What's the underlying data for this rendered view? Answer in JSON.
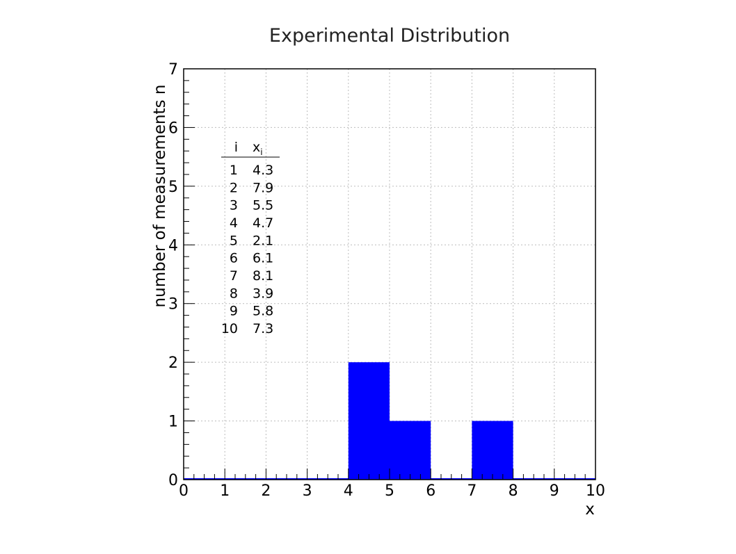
{
  "chart_data": {
    "type": "bar",
    "title": "Experimental Distribution",
    "xlabel": "x",
    "ylabel": "number of measurements n",
    "xlim": [
      0,
      10
    ],
    "ylim": [
      0,
      7
    ],
    "x_ticks": [
      "0",
      "1",
      "2",
      "3",
      "4",
      "5",
      "6",
      "7",
      "8",
      "9",
      "10"
    ],
    "y_ticks": [
      "0",
      "1",
      "2",
      "3",
      "4",
      "5",
      "6",
      "7"
    ],
    "grid": true,
    "bar_color": "#0000ff",
    "bins": [
      {
        "x0": 4,
        "x1": 5,
        "value": 2
      },
      {
        "x0": 5,
        "x1": 6,
        "value": 1
      },
      {
        "x0": 7,
        "x1": 8,
        "value": 1
      }
    ],
    "annotation_table": {
      "header_i": "i",
      "header_x": "x",
      "header_x_subscript": "i",
      "rows": [
        {
          "i": "1",
          "x": "4.3"
        },
        {
          "i": "2",
          "x": "7.9"
        },
        {
          "i": "3",
          "x": "5.5"
        },
        {
          "i": "4",
          "x": "4.7"
        },
        {
          "i": "5",
          "x": "2.1"
        },
        {
          "i": "6",
          "x": "6.1"
        },
        {
          "i": "7",
          "x": "8.1"
        },
        {
          "i": "8",
          "x": "3.9"
        },
        {
          "i": "9",
          "x": "5.8"
        },
        {
          "i": "10",
          "x": "7.3"
        }
      ]
    }
  }
}
